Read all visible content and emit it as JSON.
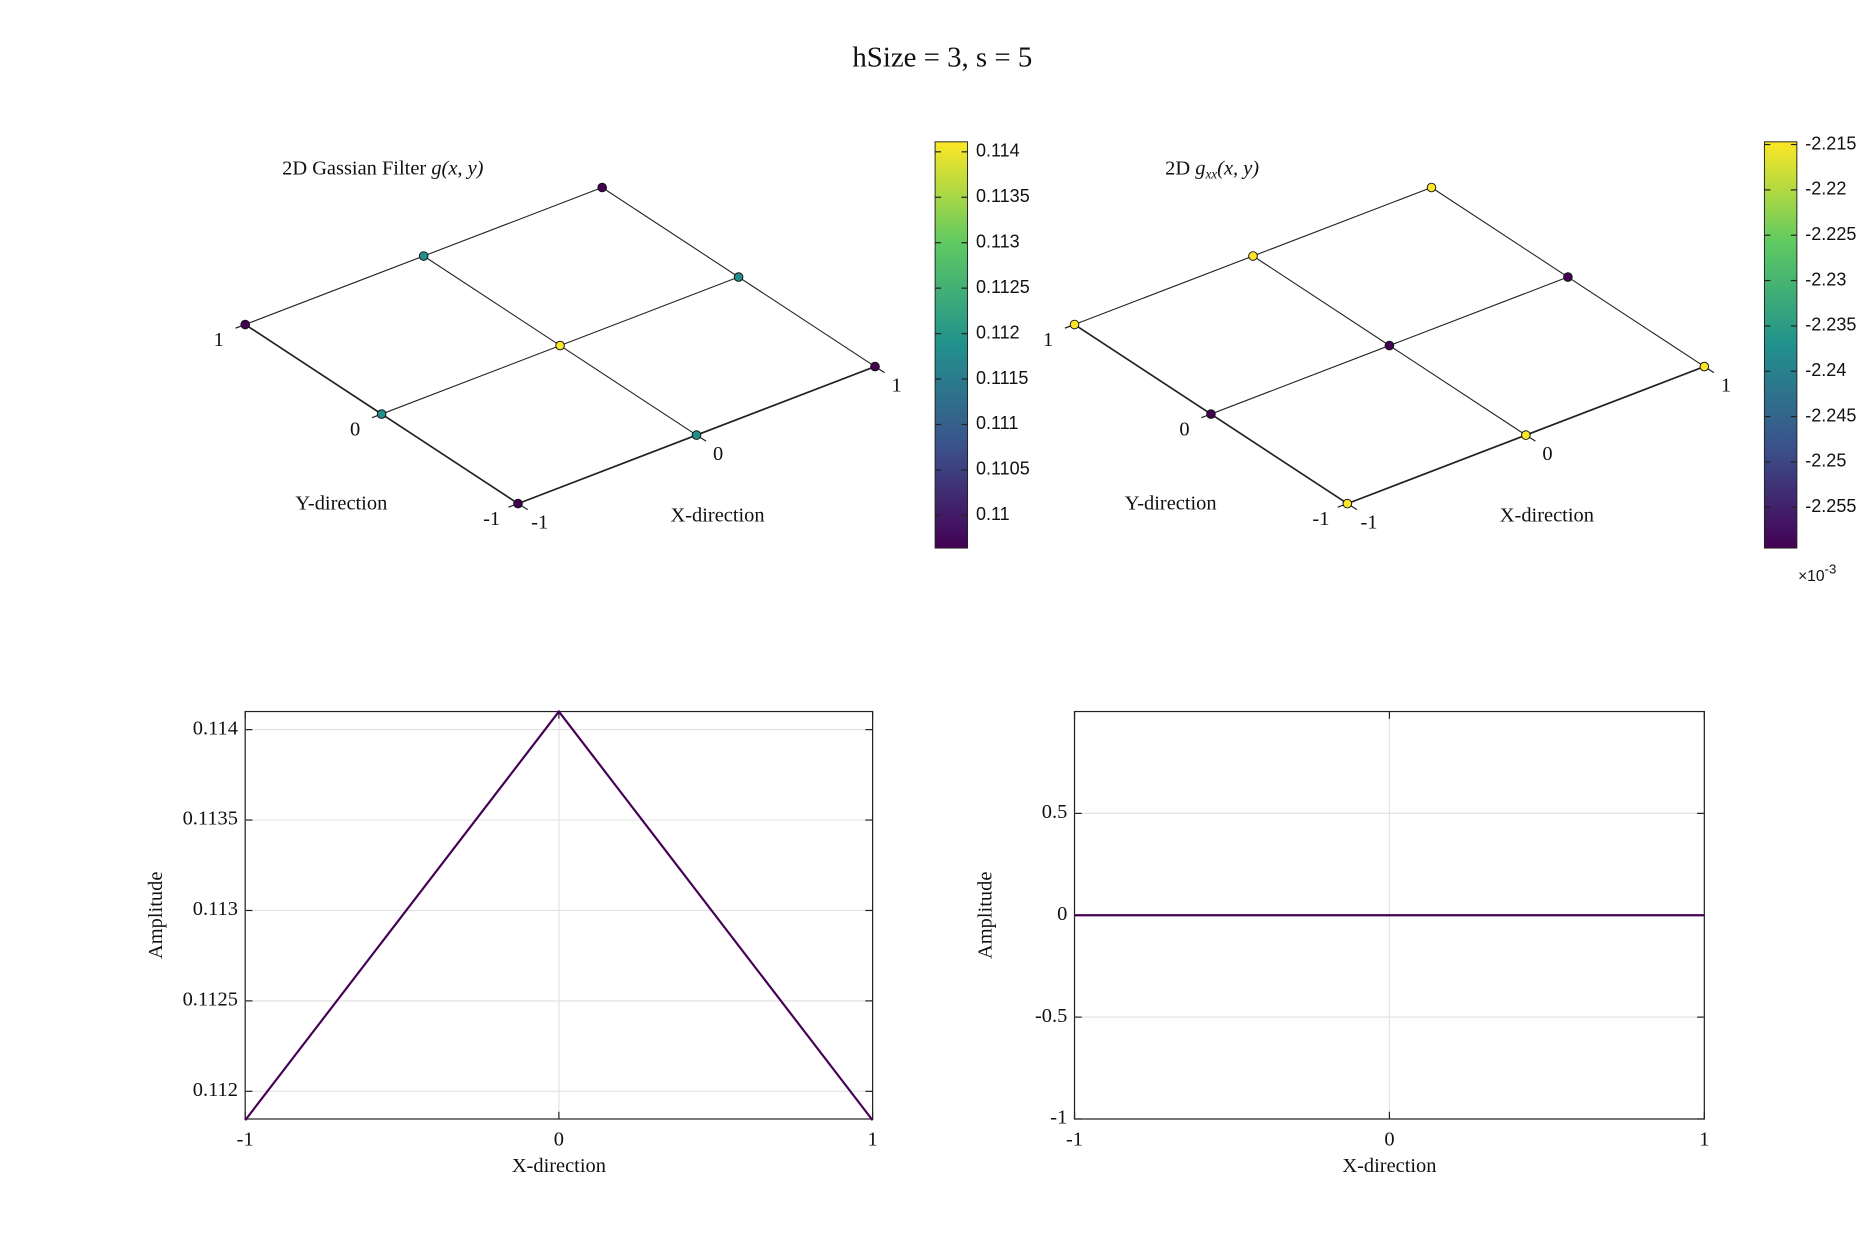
{
  "title": "hSize = 3, s = 5",
  "chart_data": [
    {
      "type": "surface3d",
      "title_text": "2D Gassian Filter",
      "title_math": {
        "base": "g",
        "rest": "(x, y)"
      },
      "x": [
        -1,
        0,
        1
      ],
      "y": [
        -1,
        0,
        1
      ],
      "z": [
        [
          0.10963,
          0.11184,
          0.10963
        ],
        [
          0.11184,
          0.1141,
          0.11184
        ],
        [
          0.10963,
          0.11184,
          0.10963
        ]
      ],
      "xlabel": "X-direction",
      "ylabel": "Y-direction",
      "xticks": [
        -1,
        0,
        1
      ],
      "yticks": [
        -1,
        0,
        1
      ],
      "colorbar": {
        "lim": [
          0.10964,
          0.11411
        ],
        "ticks": [
          0.11,
          0.1105,
          0.111,
          0.1115,
          0.112,
          0.1125,
          0.113,
          0.1135,
          0.114
        ]
      }
    },
    {
      "type": "surface3d",
      "title_text": "2D",
      "title_math": {
        "base": "g",
        "sub": "xx",
        "rest": "(x, y)"
      },
      "x": [
        -1,
        0,
        1
      ],
      "y": [
        -1,
        0,
        1
      ],
      "z": [
        [
          -2.2148,
          -2.2148,
          -2.2148
        ],
        [
          -2.2595,
          -2.2595,
          -2.2595
        ],
        [
          -2.2148,
          -2.2148,
          -2.2148
        ]
      ],
      "xlabel": "X-direction",
      "ylabel": "Y-direction",
      "xticks": [
        -1,
        0,
        1
      ],
      "yticks": [
        -1,
        0,
        1
      ],
      "colorbar": {
        "lim": [
          -2.2595,
          -2.2147
        ],
        "ticks": [
          -2.255,
          -2.25,
          -2.245,
          -2.24,
          -2.235,
          -2.23,
          -2.225,
          -2.22,
          -2.215
        ],
        "multiplier": {
          "base": "×10",
          "exponent": "-3"
        }
      }
    },
    {
      "type": "line",
      "x": [
        -1,
        0,
        1
      ],
      "values": [
        0.11184,
        0.1141,
        0.11184
      ],
      "color": "#440154",
      "xlim": [
        -1,
        1
      ],
      "ylim": [
        0.111847,
        0.1141
      ],
      "xticks": [
        -1,
        0,
        1
      ],
      "yticks": [
        0.112,
        0.1125,
        0.113,
        0.1135,
        0.114
      ],
      "xlabel": "X-direction",
      "ylabel": "Amplitude",
      "grid": true
    },
    {
      "type": "line",
      "x": [
        -1,
        0,
        1
      ],
      "values": [
        0,
        0,
        0
      ],
      "color": "#440154",
      "xlim": [
        -1,
        1
      ],
      "ylim": [
        -1,
        1
      ],
      "xticks": [
        -1,
        0,
        1
      ],
      "yticks": [
        -1,
        -0.5,
        0,
        0.5
      ],
      "xlabel": "X-direction",
      "ylabel": "Amplitude",
      "grid": true
    }
  ]
}
